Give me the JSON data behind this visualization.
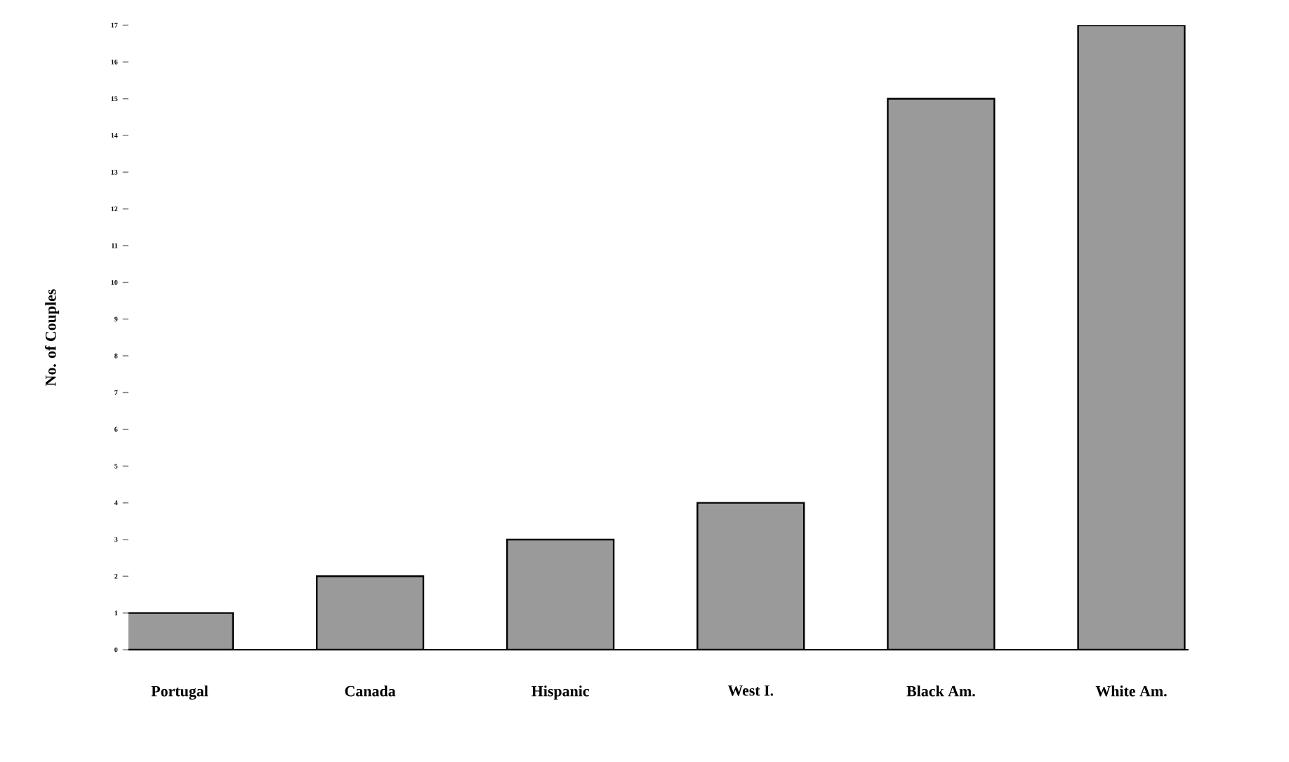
{
  "chart_data": {
    "type": "bar",
    "ylabel": "No. of Couples",
    "categories": [
      "Portugal",
      "Canada",
      "Hispanic",
      "West I.",
      "Black Am.",
      "White Am."
    ],
    "values": [
      1,
      2,
      3,
      4,
      15,
      17
    ],
    "color": "#9a9a9a",
    "ylim": [
      0,
      17
    ],
    "yticks": [
      0,
      1,
      2,
      3,
      4,
      5,
      6,
      7,
      8,
      9,
      10,
      11,
      12,
      13,
      14,
      15,
      16,
      17
    ]
  }
}
